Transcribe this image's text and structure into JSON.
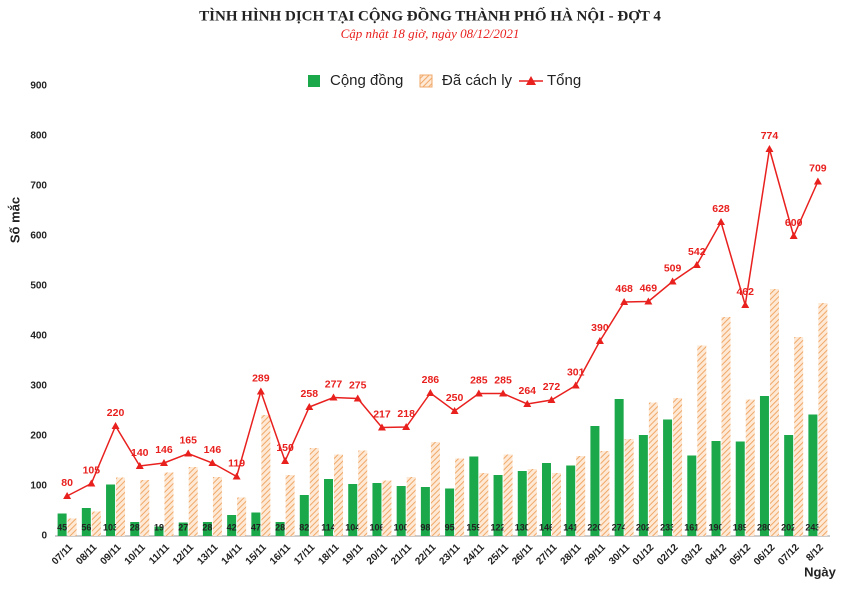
{
  "chart_data": {
    "type": "bar",
    "title": "TÌNH HÌNH DỊCH TẠI CỘNG ĐỒNG THÀNH PHỐ HÀ NỘI - ĐỢT 4",
    "subtitle": "Cập nhật 18 giờ, ngày 08/12/2021",
    "y_label": "Số mắc",
    "x_label": "Ngày",
    "categories": [
      "07/11",
      "08/11",
      "09/11",
      "10/11",
      "11/11",
      "12/11",
      "13/11",
      "14/11",
      "15/11",
      "16/11",
      "17/11",
      "18/11",
      "19/11",
      "20/11",
      "21/11",
      "22/11",
      "23/11",
      "24/11",
      "25/11",
      "26/11",
      "27/11",
      "28/11",
      "29/11",
      "30/11",
      "01/12",
      "02/12",
      "03/12",
      "04/12",
      "05/12",
      "06/12",
      "07/12",
      "8/12"
    ],
    "series": [
      {
        "name": "Cộng đồng",
        "type": "bar",
        "color": "#1aa84a",
        "values": [
          45,
          56,
          103,
          28,
          19,
          27,
          28,
          42,
          47,
          28,
          82,
          114,
          104,
          106,
          100,
          98,
          95,
          159,
          122,
          130,
          146,
          141,
          220,
          274,
          202,
          233,
          161,
          190,
          189,
          280,
          202,
          243
        ]
      },
      {
        "name": "Đã cách ly",
        "type": "bar",
        "color": "#f0a868",
        "values": [
          35,
          49,
          117,
          112,
          127,
          138,
          118,
          77,
          242,
          122,
          176,
          163,
          171,
          111,
          118,
          188,
          155,
          126,
          163,
          134,
          126,
          160,
          170,
          194,
          267,
          276,
          381,
          438,
          273,
          494,
          398,
          466
        ]
      },
      {
        "name": "Tổng",
        "type": "line",
        "color": "#e8201e",
        "values": [
          80,
          105,
          220,
          140,
          146,
          165,
          146,
          119,
          289,
          150,
          258,
          277,
          275,
          217,
          218,
          286,
          250,
          285,
          285,
          264,
          272,
          301,
          390,
          468,
          469,
          509,
          542,
          628,
          462,
          774,
          600,
          709
        ]
      }
    ],
    "ylim": [
      0,
      900
    ],
    "yticks": [
      0,
      100,
      200,
      300,
      400,
      500,
      600,
      700,
      800,
      900
    ],
    "legend": "top",
    "grid": false
  }
}
